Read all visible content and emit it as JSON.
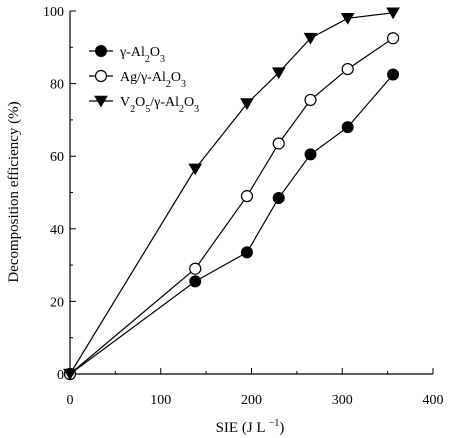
{
  "chart_data": {
    "type": "line",
    "xlabel": "SIE (J L",
    "xlabel_sup": "−1",
    "xlabel_close": ")",
    "ylabel": "Decomposition efficiency (%)",
    "xlim": [
      0,
      400
    ],
    "ylim": [
      0,
      100
    ],
    "x_ticks": [
      "0",
      "100",
      "200",
      "300",
      "400"
    ],
    "y_ticks": [
      "0",
      "20",
      "40",
      "60",
      "80",
      "100"
    ],
    "grid": false,
    "legend_position": "top-left",
    "series": [
      {
        "name": "γ-Al2O3",
        "marker": "filled-circle",
        "label_parts": [
          {
            "t": "γ-Al"
          },
          {
            "t": "2",
            "sub": true
          },
          {
            "t": "O"
          },
          {
            "t": "3",
            "sub": true
          }
        ],
        "points": [
          [
            0,
            0
          ],
          [
            138,
            25.5
          ],
          [
            195,
            33.5
          ],
          [
            230,
            48.5
          ],
          [
            265,
            60.5
          ],
          [
            306,
            68
          ],
          [
            356,
            82.5
          ]
        ]
      },
      {
        "name": "Ag/γ-Al2O3",
        "marker": "open-circle",
        "label_parts": [
          {
            "t": "Ag/γ-Al"
          },
          {
            "t": "2",
            "sub": true
          },
          {
            "t": "O"
          },
          {
            "t": "3",
            "sub": true
          }
        ],
        "points": [
          [
            0,
            0
          ],
          [
            138,
            29
          ],
          [
            195,
            49
          ],
          [
            230,
            63.5
          ],
          [
            265,
            75.5
          ],
          [
            306,
            84
          ],
          [
            356,
            92.5
          ]
        ]
      },
      {
        "name": "V2O5/γ-Al2O3",
        "marker": "filled-triangle-down",
        "label_parts": [
          {
            "t": "V"
          },
          {
            "t": "2",
            "sub": true
          },
          {
            "t": "O"
          },
          {
            "t": "5",
            "sub": true
          },
          {
            "t": "/γ-Al"
          },
          {
            "t": "2",
            "sub": true
          },
          {
            "t": "O"
          },
          {
            "t": "3",
            "sub": true
          }
        ],
        "points": [
          [
            0,
            0
          ],
          [
            138,
            56.5
          ],
          [
            195,
            74.5
          ],
          [
            230,
            83
          ],
          [
            265,
            92.5
          ],
          [
            306,
            98
          ],
          [
            356,
            99.5
          ]
        ]
      }
    ]
  }
}
